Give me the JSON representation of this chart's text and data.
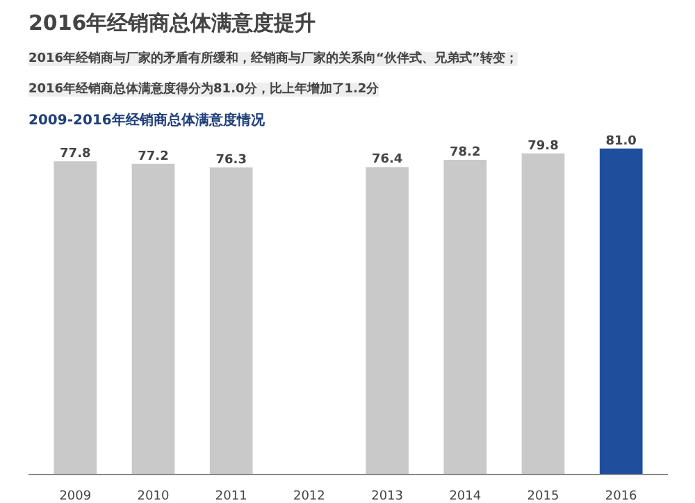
{
  "chart_data": {
    "type": "bar",
    "title": "2016年经销商总体满意度提升",
    "annotations": [
      "2016年经销商与厂家的矛盾有所缓和，经销商与厂家的关系向“伙伴式、兄弟式”转变；",
      "2016年经销商总体满意度得分为81.0分，比上年增加了1.2分"
    ],
    "subtitle": "2009-2016年经销商总体满意度情况",
    "categories": [
      "2009",
      "2010",
      "2011",
      "2012",
      "2013",
      "2014",
      "2015",
      "2016"
    ],
    "values": [
      77.8,
      77.2,
      76.3,
      null,
      76.4,
      78.2,
      79.8,
      81.0
    ],
    "colors": [
      "#c9c9c9",
      "#c9c9c9",
      "#c9c9c9",
      "#c9c9c9",
      "#c9c9c9",
      "#c9c9c9",
      "#c9c9c9",
      "#1f4e9c"
    ],
    "value_labels": [
      "77.8",
      "77.2",
      "76.3",
      null,
      "76.4",
      "78.2",
      "79.8",
      "81.0"
    ],
    "tick_labels": "x",
    "grid": false
  }
}
